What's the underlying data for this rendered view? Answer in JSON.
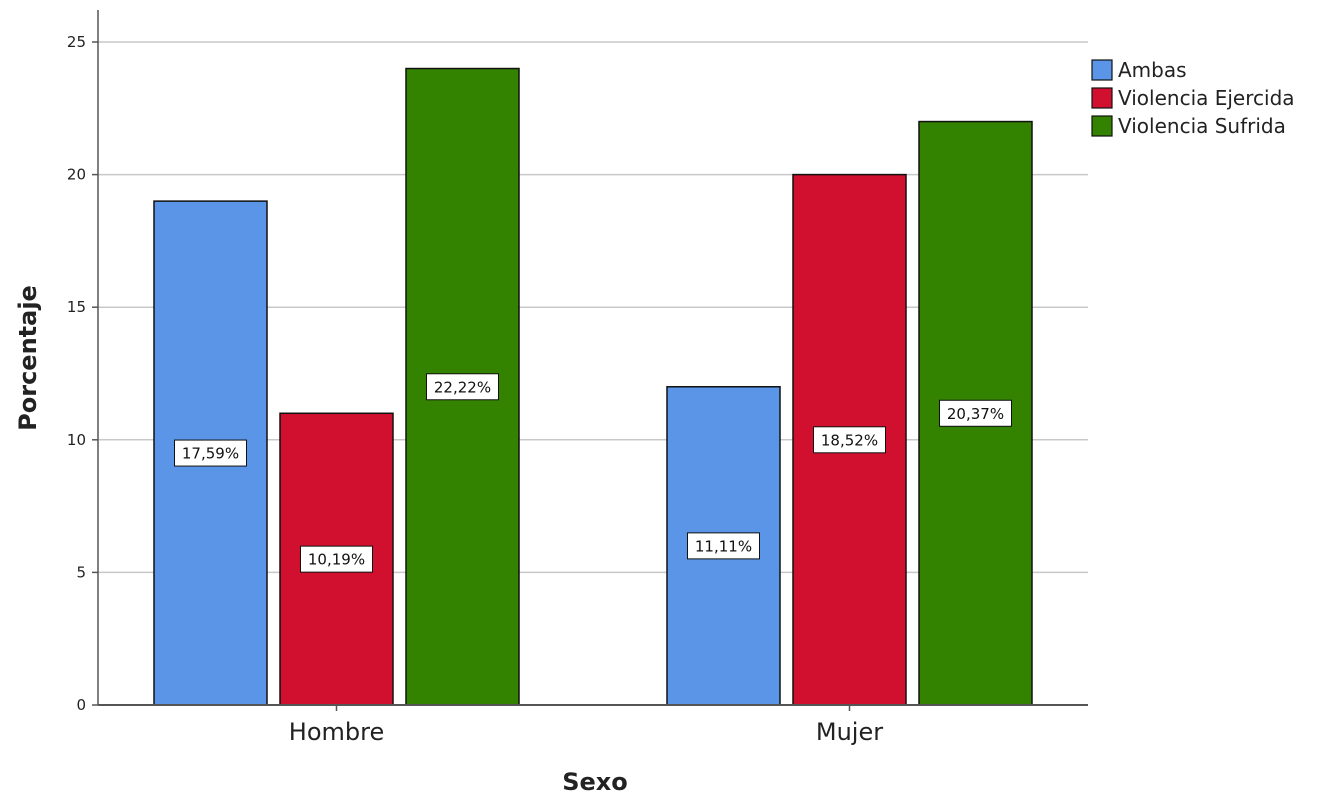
{
  "chart_data": {
    "type": "bar",
    "categories": [
      "Hombre",
      "Mujer"
    ],
    "series": [
      {
        "name": "Ambas",
        "color": "#5b95e8",
        "values": [
          19,
          12
        ],
        "labels": [
          "17,59%",
          "11,11%"
        ]
      },
      {
        "name": "Violencia Ejercida",
        "color": "#d10f2f",
        "values": [
          11,
          20
        ],
        "labels": [
          "10,19%",
          "18,52%"
        ]
      },
      {
        "name": "Violencia Sufrida",
        "color": "#338200",
        "values": [
          24,
          22
        ],
        "labels": [
          "22,22%",
          "20,37%"
        ]
      }
    ],
    "title": "",
    "xlabel": "Sexo",
    "ylabel": "Porcentaje",
    "ylim": [
      0,
      25
    ],
    "yticks": [
      0,
      5,
      10,
      15,
      20,
      25
    ],
    "grid": true,
    "legend": "top-right"
  }
}
